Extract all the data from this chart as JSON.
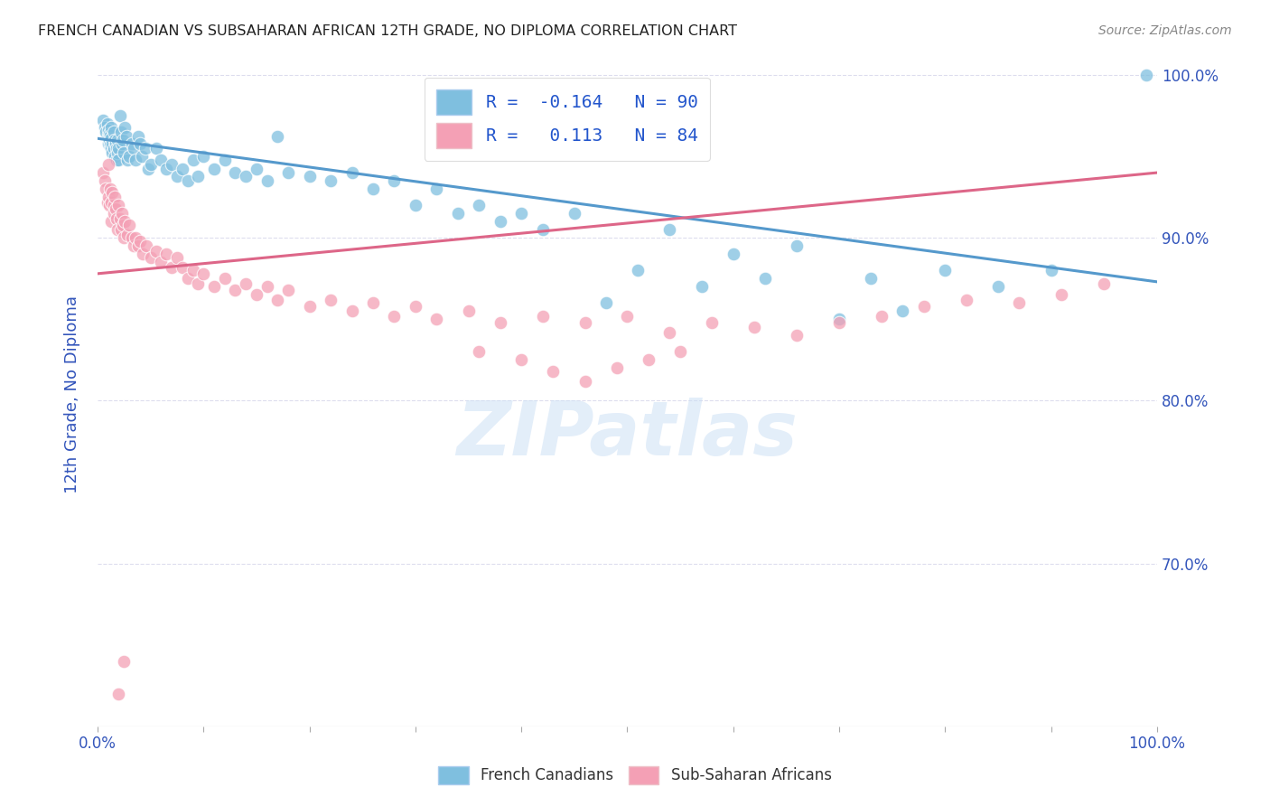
{
  "title": "FRENCH CANADIAN VS SUBSAHARAN AFRICAN 12TH GRADE, NO DIPLOMA CORRELATION CHART",
  "source": "Source: ZipAtlas.com",
  "ylabel": "12th Grade, No Diploma",
  "watermark": "ZIPatlas",
  "legend_r_blue": "-0.164",
  "legend_n_blue": "90",
  "legend_r_pink": "0.113",
  "legend_n_pink": "84",
  "xlim": [
    0.0,
    1.0
  ],
  "ylim": [
    0.6,
    1.008
  ],
  "right_yticks": [
    0.7,
    0.8,
    0.9,
    1.0
  ],
  "right_yticklabels": [
    "70.0%",
    "80.0%",
    "90.0%",
    "100.0%"
  ],
  "blue_color": "#7fbfdf",
  "pink_color": "#f4a0b5",
  "blue_line_color": "#5599cc",
  "pink_line_color": "#dd6688",
  "title_color": "#222222",
  "axis_label_color": "#3355bb",
  "grid_color": "#ddddee",
  "background_color": "#ffffff",
  "blue_line_x0": 0.0,
  "blue_line_y0": 0.961,
  "blue_line_x1": 1.0,
  "blue_line_y1": 0.873,
  "pink_line_x0": 0.0,
  "pink_line_y0": 0.878,
  "pink_line_x1": 1.0,
  "pink_line_y1": 0.94,
  "blue_scatter_x": [
    0.005,
    0.007,
    0.008,
    0.009,
    0.01,
    0.01,
    0.01,
    0.011,
    0.011,
    0.012,
    0.012,
    0.013,
    0.013,
    0.013,
    0.014,
    0.014,
    0.015,
    0.015,
    0.016,
    0.016,
    0.017,
    0.018,
    0.018,
    0.019,
    0.019,
    0.02,
    0.02,
    0.021,
    0.022,
    0.023,
    0.024,
    0.025,
    0.026,
    0.027,
    0.028,
    0.03,
    0.032,
    0.034,
    0.036,
    0.038,
    0.04,
    0.042,
    0.045,
    0.048,
    0.05,
    0.055,
    0.06,
    0.065,
    0.07,
    0.075,
    0.08,
    0.085,
    0.09,
    0.095,
    0.1,
    0.11,
    0.12,
    0.13,
    0.14,
    0.15,
    0.16,
    0.17,
    0.18,
    0.2,
    0.22,
    0.24,
    0.26,
    0.28,
    0.3,
    0.32,
    0.34,
    0.36,
    0.38,
    0.4,
    0.42,
    0.45,
    0.48,
    0.51,
    0.54,
    0.57,
    0.6,
    0.63,
    0.66,
    0.7,
    0.73,
    0.76,
    0.8,
    0.85,
    0.9,
    0.99
  ],
  "blue_scatter_y": [
    0.972,
    0.968,
    0.965,
    0.97,
    0.962,
    0.958,
    0.966,
    0.964,
    0.96,
    0.963,
    0.957,
    0.961,
    0.955,
    0.968,
    0.958,
    0.952,
    0.965,
    0.955,
    0.96,
    0.95,
    0.958,
    0.955,
    0.948,
    0.96,
    0.952,
    0.955,
    0.948,
    0.975,
    0.965,
    0.958,
    0.96,
    0.952,
    0.968,
    0.962,
    0.948,
    0.95,
    0.958,
    0.955,
    0.948,
    0.962,
    0.958,
    0.95,
    0.955,
    0.942,
    0.945,
    0.955,
    0.948,
    0.942,
    0.945,
    0.938,
    0.942,
    0.935,
    0.948,
    0.938,
    0.95,
    0.942,
    0.948,
    0.94,
    0.938,
    0.942,
    0.935,
    0.962,
    0.94,
    0.938,
    0.935,
    0.94,
    0.93,
    0.935,
    0.92,
    0.93,
    0.915,
    0.92,
    0.91,
    0.915,
    0.905,
    0.915,
    0.86,
    0.88,
    0.905,
    0.87,
    0.89,
    0.875,
    0.895,
    0.85,
    0.875,
    0.855,
    0.88,
    0.87,
    0.88,
    1.0
  ],
  "pink_scatter_x": [
    0.005,
    0.007,
    0.008,
    0.009,
    0.01,
    0.01,
    0.011,
    0.012,
    0.013,
    0.013,
    0.014,
    0.015,
    0.015,
    0.016,
    0.017,
    0.018,
    0.019,
    0.02,
    0.021,
    0.022,
    0.023,
    0.024,
    0.025,
    0.026,
    0.028,
    0.03,
    0.032,
    0.034,
    0.036,
    0.038,
    0.04,
    0.043,
    0.046,
    0.05,
    0.055,
    0.06,
    0.065,
    0.07,
    0.075,
    0.08,
    0.085,
    0.09,
    0.095,
    0.1,
    0.11,
    0.12,
    0.13,
    0.14,
    0.15,
    0.16,
    0.17,
    0.18,
    0.2,
    0.22,
    0.24,
    0.26,
    0.28,
    0.3,
    0.32,
    0.35,
    0.38,
    0.42,
    0.46,
    0.5,
    0.54,
    0.58,
    0.62,
    0.66,
    0.7,
    0.74,
    0.78,
    0.82,
    0.87,
    0.91,
    0.95,
    0.36,
    0.4,
    0.43,
    0.46,
    0.49,
    0.52,
    0.55,
    0.02,
    0.025
  ],
  "pink_scatter_y": [
    0.94,
    0.935,
    0.93,
    0.922,
    0.945,
    0.925,
    0.92,
    0.93,
    0.922,
    0.91,
    0.928,
    0.92,
    0.915,
    0.925,
    0.918,
    0.912,
    0.905,
    0.92,
    0.912,
    0.905,
    0.915,
    0.908,
    0.9,
    0.91,
    0.902,
    0.908,
    0.9,
    0.895,
    0.9,
    0.895,
    0.898,
    0.89,
    0.895,
    0.888,
    0.892,
    0.885,
    0.89,
    0.882,
    0.888,
    0.882,
    0.875,
    0.88,
    0.872,
    0.878,
    0.87,
    0.875,
    0.868,
    0.872,
    0.865,
    0.87,
    0.862,
    0.868,
    0.858,
    0.862,
    0.855,
    0.86,
    0.852,
    0.858,
    0.85,
    0.855,
    0.848,
    0.852,
    0.848,
    0.852,
    0.842,
    0.848,
    0.845,
    0.84,
    0.848,
    0.852,
    0.858,
    0.862,
    0.86,
    0.865,
    0.872,
    0.83,
    0.825,
    0.818,
    0.812,
    0.82,
    0.825,
    0.83,
    0.62,
    0.64
  ]
}
